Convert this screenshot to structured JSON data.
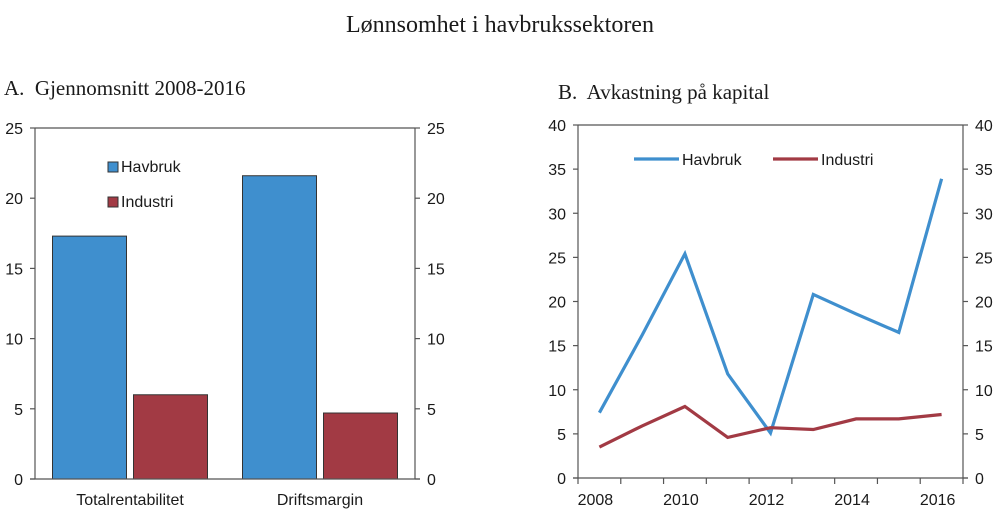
{
  "figure": {
    "title": "Lønnsomhet i havbrukssektoren"
  },
  "colors": {
    "havbruk": "#3f8fce",
    "industri": "#a23a44",
    "axis": "#555555"
  },
  "chart_data": [
    {
      "type": "bar",
      "title": "A.  Gjennomsnitt 2008-2016",
      "xlabel": "",
      "ylabel": "",
      "categories": [
        "Totalrentabilitet",
        "Driftsmargin"
      ],
      "series": [
        {
          "name": "Havbruk",
          "values": [
            17.3,
            21.6
          ]
        },
        {
          "name": "Industri",
          "values": [
            6.0,
            4.7
          ]
        }
      ],
      "ylim": [
        0,
        25
      ],
      "yticks": [
        0,
        5,
        10,
        15,
        20,
        25
      ],
      "y_axis_both_sides": true,
      "grid": false,
      "legend_position": "upper-left-inside"
    },
    {
      "type": "line",
      "title": "B.  Avkastning på kapital",
      "xlabel": "",
      "ylabel": "",
      "x": [
        2008,
        2009,
        2010,
        2011,
        2012,
        2013,
        2014,
        2015,
        2016
      ],
      "series": [
        {
          "name": "Havbruk",
          "values": [
            7.4,
            16.2,
            25.4,
            11.8,
            5.1,
            20.8,
            18.6,
            16.5,
            33.9
          ]
        },
        {
          "name": "Industri",
          "values": [
            3.5,
            5.9,
            8.1,
            4.6,
            5.7,
            5.5,
            6.7,
            6.7,
            7.2
          ]
        }
      ],
      "ylim": [
        0,
        40
      ],
      "yticks": [
        0,
        5,
        10,
        15,
        20,
        25,
        30,
        35,
        40
      ],
      "xtick_labels": [
        "2008",
        "2010",
        "2012",
        "2014",
        "2016"
      ],
      "y_axis_both_sides": true,
      "grid": false,
      "legend_position": "upper-center-inside"
    }
  ]
}
